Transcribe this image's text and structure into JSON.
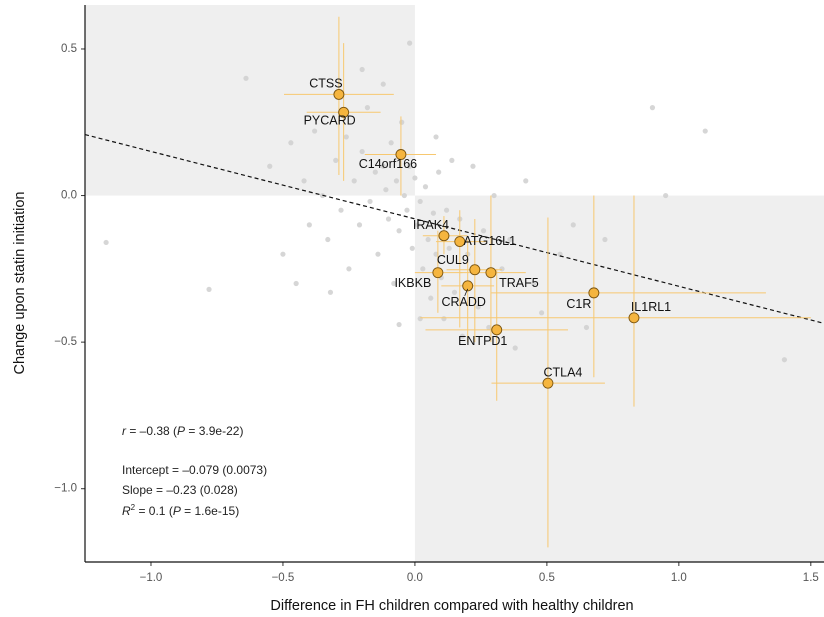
{
  "chart_data": {
    "type": "scatter",
    "x_label": "Difference in FH children compared with healthy children",
    "y_label": "Change upon statin initiation",
    "xlim": [
      -1.25,
      1.55
    ],
    "ylim": [
      -1.25,
      0.65
    ],
    "xticks": [
      {
        "value": -1.0,
        "label": "−1.0"
      },
      {
        "value": -0.5,
        "label": "−0.5"
      },
      {
        "value": 0,
        "label": "0.0"
      },
      {
        "value": 0.5,
        "label": "0.5"
      },
      {
        "value": 1.0,
        "label": "1.0"
      },
      {
        "value": 1.5,
        "label": "1.5"
      }
    ],
    "yticks": [
      {
        "value": 0.5,
        "label": "0.5"
      },
      {
        "value": 0,
        "label": "0.0"
      },
      {
        "value": -0.5,
        "label": "−0.5"
      },
      {
        "value": -1.0,
        "label": "−1.0"
      }
    ],
    "quadrant_color": "#efefef",
    "background": {
      "color": "#cfcfcf",
      "x": [
        -1.17,
        -0.78,
        -0.64,
        -0.55,
        -0.5,
        -0.47,
        -0.42,
        -0.4,
        -0.38,
        -0.35,
        -0.33,
        -0.3,
        -0.28,
        -0.26,
        -0.25,
        -0.23,
        -0.21,
        -0.2,
        -0.18,
        -0.17,
        -0.15,
        -0.14,
        -0.12,
        -0.11,
        -0.1,
        -0.09,
        -0.08,
        -0.07,
        -0.06,
        -0.05,
        -0.04,
        -0.03,
        -0.02,
        -0.01,
        0.0,
        0.01,
        0.02,
        0.03,
        0.04,
        0.05,
        0.06,
        0.07,
        0.08,
        0.09,
        0.1,
        0.11,
        0.12,
        0.13,
        0.14,
        0.15,
        0.17,
        0.18,
        0.2,
        0.22,
        0.24,
        0.26,
        0.28,
        0.3,
        0.33,
        0.36,
        0.38,
        0.42,
        0.45,
        0.48,
        0.55,
        0.6,
        0.65,
        0.72,
        0.9,
        0.95,
        1.1,
        1.4,
        -0.2,
        -0.12,
        -0.02,
        0.08,
        -0.32,
        -0.45,
        0.02,
        -0.06
      ],
      "y": [
        -0.16,
        -0.32,
        0.4,
        0.1,
        -0.2,
        0.18,
        0.05,
        -0.1,
        0.22,
        0.0,
        -0.15,
        0.12,
        -0.05,
        0.2,
        -0.25,
        0.05,
        -0.1,
        0.15,
        0.3,
        -0.02,
        0.08,
        -0.2,
        0.1,
        0.02,
        -0.08,
        0.18,
        -0.3,
        0.05,
        -0.12,
        0.25,
        0.0,
        -0.05,
        0.1,
        -0.18,
        0.06,
        -0.1,
        -0.02,
        -0.25,
        0.03,
        -0.15,
        -0.35,
        -0.06,
        -0.2,
        0.08,
        -0.28,
        -0.42,
        -0.05,
        -0.18,
        0.12,
        -0.33,
        -0.08,
        -0.48,
        -0.2,
        0.1,
        -0.38,
        -0.12,
        -0.45,
        0.0,
        -0.25,
        -0.15,
        -0.52,
        0.05,
        -0.3,
        -0.4,
        -0.2,
        -0.1,
        -0.45,
        -0.15,
        0.3,
        0.0,
        0.22,
        -0.56,
        0.43,
        0.38,
        0.52,
        0.2,
        -0.33,
        -0.3,
        -0.42,
        -0.44
      ]
    },
    "highlight": {
      "color": "#f5b53f",
      "error_color": "#f7c870",
      "labels": [
        "CTSS",
        "PYCARD",
        "C14orf166",
        "IRAK4",
        "ATG16L1",
        "CUL9",
        "TRAF5",
        "IKBKB",
        "CRADD",
        "C1R",
        "IL1RL1",
        "ENTPD1",
        "CTLA4"
      ],
      "x": [
        -0.288,
        -0.27,
        -0.053,
        0.11,
        0.17,
        0.227,
        0.288,
        0.087,
        0.2,
        0.678,
        0.83,
        0.31,
        0.504
      ],
      "y": [
        0.345,
        0.284,
        0.14,
        -0.137,
        -0.157,
        -0.253,
        -0.263,
        -0.263,
        -0.308,
        -0.332,
        -0.417,
        -0.458,
        -0.64
      ],
      "x_low": [
        -0.496,
        -0.41,
        -0.19,
        0.03,
        0.08,
        0.12,
        0.17,
        0.0,
        0.1,
        0.29,
        0.02,
        0.04,
        0.29
      ],
      "x_high": [
        -0.08,
        -0.13,
        0.08,
        0.2,
        0.27,
        0.33,
        0.42,
        0.18,
        0.3,
        1.33,
        1.5,
        0.58,
        0.72
      ],
      "y_low": [
        0.07,
        0.05,
        0.0,
        -0.2,
        -0.45,
        -0.5,
        -0.5,
        -0.4,
        -0.5,
        -0.62,
        -0.72,
        -0.7,
        -1.2
      ],
      "y_high": [
        0.61,
        0.52,
        0.27,
        -0.07,
        -0.05,
        -0.08,
        0.0,
        -0.12,
        -0.15,
        0.0,
        0.0,
        -0.25,
        -0.075
      ]
    },
    "fit_line": {
      "x": [
        -1.25,
        1.55
      ],
      "y": [
        0.208,
        -0.436
      ]
    },
    "annotations": [
      [
        {
          "text": "r",
          "italic": true
        },
        {
          "text": " = –0.38 ("
        },
        {
          "text": "P",
          "italic": true
        },
        {
          "text": " = 3.9e-22)"
        }
      ],
      [
        {
          "text": "Intercept = –0.079 (0.0073)"
        }
      ],
      [
        {
          "text": "Slope = –0.23 (0.028)"
        }
      ],
      [
        {
          "text": "R",
          "italic": true
        },
        {
          "text": "2",
          "sup": true
        },
        {
          "text": " = 0.1 ("
        },
        {
          "text": "P",
          "italic": true
        },
        {
          "text": " = 1.6e-15)"
        }
      ]
    ]
  }
}
